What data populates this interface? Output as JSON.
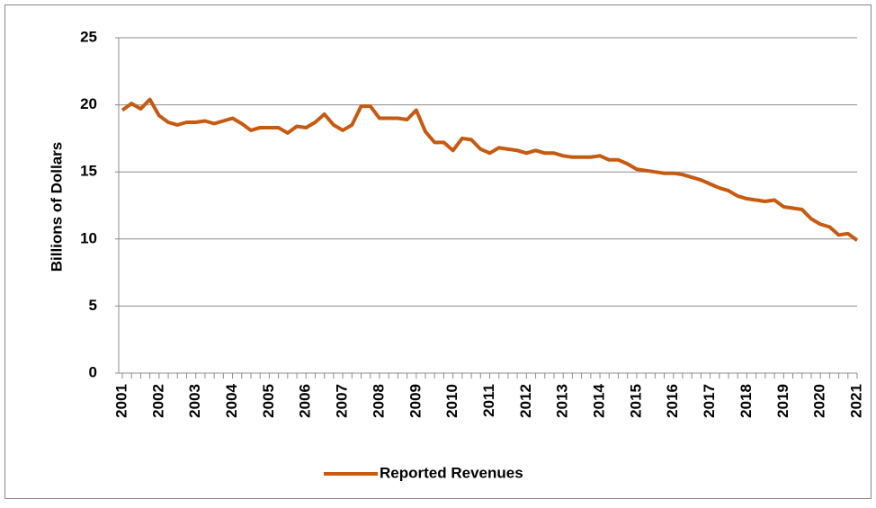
{
  "chart_data": {
    "type": "line",
    "ylabel": "Billions of Dollars",
    "categories": [
      "2001",
      null,
      null,
      null,
      "2002",
      null,
      null,
      null,
      "2003",
      null,
      null,
      null,
      "2004",
      null,
      null,
      null,
      "2005",
      null,
      null,
      null,
      "2006",
      null,
      null,
      null,
      "2007",
      null,
      null,
      null,
      "2008",
      null,
      null,
      null,
      "2009",
      null,
      null,
      null,
      "2010",
      null,
      null,
      null,
      "2011",
      null,
      null,
      null,
      "2012",
      null,
      null,
      null,
      "2013",
      null,
      null,
      null,
      "2014",
      null,
      null,
      null,
      "2015",
      null,
      null,
      null,
      "2016",
      null,
      null,
      null,
      "2017",
      null,
      null,
      null,
      "2018",
      null,
      null,
      null,
      "2019",
      null,
      null,
      null,
      "2020",
      null,
      null,
      null,
      "2021"
    ],
    "series": [
      {
        "name": "Reported Revenues",
        "color": "#c55a11",
        "values": [
          19.6,
          20.1,
          19.7,
          20.4,
          19.2,
          18.7,
          18.5,
          18.7,
          18.7,
          18.8,
          18.6,
          18.8,
          19.0,
          18.6,
          18.1,
          18.3,
          18.3,
          18.3,
          17.9,
          18.4,
          18.3,
          18.7,
          19.3,
          18.5,
          18.1,
          18.5,
          19.9,
          19.9,
          19.0,
          19.0,
          19.0,
          18.9,
          19.6,
          18.0,
          17.2,
          17.2,
          16.6,
          17.5,
          17.4,
          16.7,
          16.4,
          16.8,
          16.7,
          16.6,
          16.4,
          16.6,
          16.4,
          16.4,
          16.2,
          16.1,
          16.1,
          16.1,
          16.2,
          15.9,
          15.9,
          15.6,
          15.2,
          15.1,
          15.0,
          14.9,
          14.9,
          14.8,
          14.6,
          14.4,
          14.1,
          13.8,
          13.6,
          13.2,
          13.0,
          12.9,
          12.8,
          12.9,
          12.4,
          12.3,
          12.2,
          11.5,
          11.1,
          10.9,
          10.3,
          10.4,
          9.9
        ]
      }
    ],
    "ylim": [
      0,
      25
    ],
    "yticks": [
      0,
      5,
      10,
      15,
      20,
      25
    ],
    "grid": true,
    "legend": "bottom"
  }
}
